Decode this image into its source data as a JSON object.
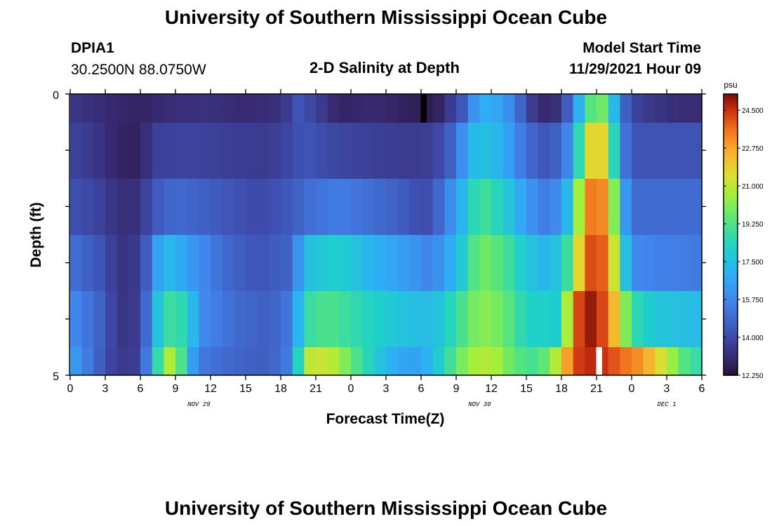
{
  "page": {
    "title": "University of Southern Mississippi Ocean Cube",
    "footer_title": "University of Southern Mississippi Ocean Cube"
  },
  "station": {
    "id": "DPIA1",
    "coords": "30.2500N  88.0750W"
  },
  "model": {
    "label": "Model Start Time",
    "start": "11/29/2021 Hour 09"
  },
  "chart_data": {
    "type": "heatmap",
    "title": "2-D Salinity at Depth",
    "xlabel": "Forecast Time(Z)",
    "ylabel": "Depth (ft)",
    "x_ticks": [
      "0",
      "3",
      "6",
      "9",
      "12",
      "15",
      "18",
      "21",
      "0",
      "3",
      "6",
      "9",
      "12",
      "15",
      "18",
      "21",
      "0",
      "3",
      "6"
    ],
    "date_labels": [
      {
        "label": "NOV 29",
        "at_hour": 11
      },
      {
        "label": "NOV 30",
        "at_hour": 35
      },
      {
        "label": "DEC 1",
        "at_hour": 51
      }
    ],
    "y_ticks": [
      "0",
      "5"
    ],
    "y_range": [
      0,
      5
    ],
    "x_range_hours": [
      0,
      54
    ],
    "colorbar": {
      "unit": "psu",
      "min": 12.25,
      "max": 25.25,
      "ticks": [
        "24.500",
        "22.750",
        "21.000",
        "19.250",
        "17.500",
        "15.750",
        "14.000",
        "12.250"
      ]
    },
    "layers": [
      {
        "name": "layer 1 (surface)",
        "anchors": [
          [
            0,
            13.5
          ],
          [
            3,
            13.1
          ],
          [
            6,
            12.9
          ],
          [
            9,
            13.2
          ],
          [
            12,
            13.3
          ],
          [
            15,
            13.1
          ],
          [
            18,
            13.3
          ],
          [
            19.5,
            14.3
          ],
          [
            21,
            13.8
          ],
          [
            23,
            12.9
          ],
          [
            26,
            13.1
          ],
          [
            29,
            12.8
          ],
          [
            31,
            12.6
          ],
          [
            32,
            13.2
          ],
          [
            33.5,
            14.4
          ],
          [
            35,
            17.0
          ],
          [
            37,
            16.6
          ],
          [
            38.5,
            14.8
          ],
          [
            40,
            13.0
          ],
          [
            42,
            13.3
          ],
          [
            43,
            15.8
          ],
          [
            44,
            18.3
          ],
          [
            45,
            20.5
          ],
          [
            46,
            19.2
          ],
          [
            47,
            15.5
          ],
          [
            48,
            13.9
          ],
          [
            50,
            13.4
          ],
          [
            53,
            13.1
          ],
          [
            54,
            13.2
          ]
        ]
      },
      {
        "name": "layer 2",
        "anchors": [
          [
            0,
            13.9
          ],
          [
            3,
            13.3
          ],
          [
            4,
            12.9
          ],
          [
            6,
            12.8
          ],
          [
            7,
            13.7
          ],
          [
            10,
            13.9
          ],
          [
            13,
            13.7
          ],
          [
            17,
            13.6
          ],
          [
            19,
            14.0
          ],
          [
            20,
            14.4
          ],
          [
            22,
            14.0
          ],
          [
            26,
            13.7
          ],
          [
            29,
            13.6
          ],
          [
            31,
            13.7
          ],
          [
            33,
            15.0
          ],
          [
            34,
            17.0
          ],
          [
            35,
            17.7
          ],
          [
            37,
            17.0
          ],
          [
            39,
            15.0
          ],
          [
            41,
            14.2
          ],
          [
            43,
            16.2
          ],
          [
            44,
            21.0
          ],
          [
            45,
            22.5
          ],
          [
            46,
            21.0
          ],
          [
            47,
            16.0
          ],
          [
            48,
            14.3
          ],
          [
            54,
            14.3
          ]
        ]
      },
      {
        "name": "layer 3",
        "anchors": [
          [
            0,
            14.3
          ],
          [
            3,
            13.7
          ],
          [
            4,
            13.2
          ],
          [
            6,
            13.3
          ],
          [
            7,
            14.4
          ],
          [
            9,
            15.0
          ],
          [
            12,
            14.6
          ],
          [
            16,
            14.0
          ],
          [
            19,
            14.5
          ],
          [
            20,
            15.0
          ],
          [
            23,
            15.5
          ],
          [
            26,
            15.0
          ],
          [
            29,
            14.5
          ],
          [
            30,
            14.0
          ],
          [
            31,
            14.3
          ],
          [
            33,
            16.5
          ],
          [
            35,
            19.2
          ],
          [
            37,
            18.2
          ],
          [
            39,
            16.3
          ],
          [
            41,
            15.2
          ],
          [
            43,
            18.0
          ],
          [
            44,
            23.2
          ],
          [
            45,
            23.7
          ],
          [
            46,
            22.8
          ],
          [
            47,
            17.5
          ],
          [
            48,
            15.0
          ],
          [
            54,
            15.0
          ]
        ]
      },
      {
        "name": "layer 4",
        "anchors": [
          [
            0,
            15.2
          ],
          [
            3,
            14.2
          ],
          [
            4,
            13.3
          ],
          [
            6,
            13.6
          ],
          [
            8,
            17.5
          ],
          [
            10,
            16.5
          ],
          [
            13,
            15.0
          ],
          [
            16,
            14.3
          ],
          [
            19,
            14.8
          ],
          [
            20,
            17.5
          ],
          [
            23,
            18.2
          ],
          [
            26,
            17.0
          ],
          [
            29,
            16.3
          ],
          [
            31,
            15.6
          ],
          [
            33,
            17.3
          ],
          [
            35,
            20.0
          ],
          [
            37,
            19.3
          ],
          [
            39,
            17.8
          ],
          [
            41,
            17.0
          ],
          [
            43,
            19.5
          ],
          [
            44,
            24.0
          ],
          [
            45,
            24.3
          ],
          [
            46,
            23.5
          ],
          [
            47,
            19.0
          ],
          [
            48,
            16.0
          ],
          [
            50,
            15.6
          ],
          [
            54,
            15.4
          ]
        ]
      },
      {
        "name": "layer 5",
        "anchors": [
          [
            0,
            16.0
          ],
          [
            3,
            14.5
          ],
          [
            4,
            13.4
          ],
          [
            6,
            13.6
          ],
          [
            8,
            19.0
          ],
          [
            10,
            18.5
          ],
          [
            11,
            16.0
          ],
          [
            14,
            15.0
          ],
          [
            17,
            14.6
          ],
          [
            19,
            15.5
          ],
          [
            20,
            18.7
          ],
          [
            22,
            19.3
          ],
          [
            25,
            18.5
          ],
          [
            28,
            17.7
          ],
          [
            31,
            17.3
          ],
          [
            33,
            18.8
          ],
          [
            35,
            20.3
          ],
          [
            37,
            19.8
          ],
          [
            39,
            18.3
          ],
          [
            42,
            18.0
          ],
          [
            43,
            23.5
          ],
          [
            44,
            25.0
          ],
          [
            45,
            25.0
          ],
          [
            46,
            23.5
          ],
          [
            47,
            21.3
          ],
          [
            48,
            18.8
          ],
          [
            50,
            17.8
          ],
          [
            54,
            17.3
          ]
        ]
      },
      {
        "name": "layer 6 (bottom)",
        "anchors": [
          [
            0,
            16.7
          ],
          [
            2,
            15.0
          ],
          [
            4,
            13.5
          ],
          [
            6,
            13.7
          ],
          [
            7,
            17.0
          ],
          [
            8,
            20.5
          ],
          [
            9,
            21.0
          ],
          [
            10,
            17.5
          ],
          [
            11,
            15.4
          ],
          [
            14,
            14.8
          ],
          [
            17,
            14.6
          ],
          [
            19,
            15.7
          ],
          [
            20,
            21.0
          ],
          [
            22,
            21.3
          ],
          [
            24,
            19.7
          ],
          [
            26,
            18.0
          ],
          [
            28,
            16.7
          ],
          [
            30,
            16.5
          ],
          [
            32,
            18.5
          ],
          [
            34,
            20.5
          ],
          [
            36,
            21.0
          ],
          [
            38,
            19.5
          ],
          [
            40,
            19.0
          ],
          [
            42,
            21.5
          ],
          [
            43,
            24.3
          ],
          [
            45,
            24.8
          ],
          [
            47,
            23.8
          ],
          [
            49,
            23.0
          ],
          [
            51,
            21.0
          ],
          [
            53,
            18.8
          ],
          [
            54,
            18.8
          ]
        ]
      }
    ],
    "missing_cells": [
      {
        "layer": 1,
        "hour": 30,
        "marker": "black"
      },
      {
        "layer": 6,
        "hour": 45,
        "marker": "white"
      }
    ]
  }
}
